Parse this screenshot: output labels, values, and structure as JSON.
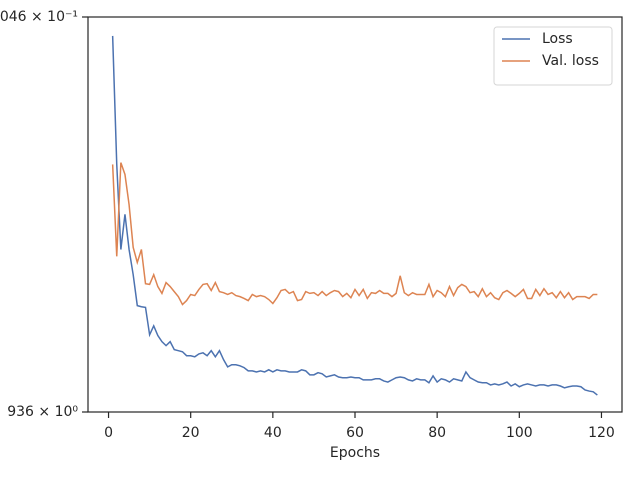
{
  "chart_data": {
    "type": "line",
    "xlabel": "Epochs",
    "log_y": true,
    "legend": "upper right",
    "xlim": [
      -5,
      125
    ],
    "xticks": [
      0,
      20,
      40,
      60,
      80,
      100,
      120
    ],
    "ylim": [
      0.9936,
      1.0046
    ],
    "yticks": [
      {
        "value": 0.9936,
        "label": "936 × 10⁰"
      },
      {
        "value": 1.0046,
        "label": "046 × 10⁻¹"
      }
    ],
    "x": [
      1,
      2,
      3,
      4,
      5,
      6,
      7,
      8,
      9,
      10,
      11,
      12,
      13,
      14,
      15,
      16,
      17,
      18,
      19,
      20,
      21,
      22,
      23,
      24,
      25,
      26,
      27,
      28,
      29,
      30,
      31,
      32,
      33,
      34,
      35,
      36,
      37,
      38,
      39,
      40,
      41,
      42,
      43,
      44,
      45,
      46,
      47,
      48,
      49,
      50,
      51,
      52,
      53,
      54,
      55,
      56,
      57,
      58,
      59,
      60,
      61,
      62,
      63,
      64,
      65,
      66,
      67,
      68,
      69,
      70,
      71,
      72,
      73,
      74,
      75,
      76,
      77,
      78,
      79,
      80,
      81,
      82,
      83,
      84,
      85,
      86,
      87,
      88,
      89,
      90,
      91,
      92,
      93,
      94,
      95,
      96,
      97,
      98,
      99,
      100,
      101,
      102,
      103,
      104,
      105,
      106,
      107,
      108,
      109,
      110,
      111,
      112,
      113,
      114,
      115,
      116,
      117,
      118,
      119
    ],
    "series": [
      {
        "name": "Loss",
        "color": "#4c72b0",
        "values": [
          1.00407,
          1.00048,
          0.99811,
          0.99909,
          0.99811,
          0.99741,
          0.99655,
          0.99652,
          0.9965,
          0.99574,
          0.99599,
          0.99572,
          0.99555,
          0.99544,
          0.99555,
          0.99533,
          0.9953,
          0.99527,
          0.99516,
          0.99516,
          0.99513,
          0.99521,
          0.99524,
          0.99516,
          0.9953,
          0.99513,
          0.9953,
          0.99505,
          0.99485,
          0.99491,
          0.99491,
          0.99488,
          0.99483,
          0.99474,
          0.99474,
          0.99471,
          0.99474,
          0.99471,
          0.99477,
          0.99471,
          0.99477,
          0.99474,
          0.99474,
          0.99471,
          0.99471,
          0.99471,
          0.99477,
          0.99474,
          0.99463,
          0.99463,
          0.99469,
          0.99466,
          0.99457,
          0.9946,
          0.99463,
          0.99457,
          0.99455,
          0.99455,
          0.99457,
          0.99455,
          0.99455,
          0.99449,
          0.99449,
          0.99449,
          0.99452,
          0.99452,
          0.99446,
          0.99443,
          0.99449,
          0.99455,
          0.99457,
          0.99455,
          0.99449,
          0.99446,
          0.99452,
          0.99449,
          0.99449,
          0.99441,
          0.9946,
          0.99443,
          0.99452,
          0.99449,
          0.99443,
          0.99452,
          0.99449,
          0.99446,
          0.99471,
          0.99455,
          0.99449,
          0.99443,
          0.99441,
          0.99441,
          0.99435,
          0.99438,
          0.99435,
          0.99438,
          0.99443,
          0.99432,
          0.99438,
          0.9943,
          0.99435,
          0.99438,
          0.99435,
          0.99432,
          0.99435,
          0.99435,
          0.99432,
          0.99435,
          0.99435,
          0.99432,
          0.99427,
          0.9943,
          0.99432,
          0.99432,
          0.9943,
          0.99421,
          0.99418,
          0.99416,
          0.99407
        ]
      },
      {
        "name": "Val. loss",
        "color": "#dd8452",
        "values": [
          1.00048,
          0.99792,
          1.00053,
          1.0002,
          0.99936,
          0.99817,
          0.99775,
          0.99811,
          0.99716,
          0.99714,
          0.99741,
          0.99708,
          0.99689,
          0.99719,
          0.99708,
          0.99694,
          0.9968,
          0.99658,
          0.99669,
          0.99686,
          0.99683,
          0.997,
          0.99714,
          0.99716,
          0.99697,
          0.99719,
          0.99694,
          0.99691,
          0.99686,
          0.99691,
          0.99683,
          0.9968,
          0.99675,
          0.99669,
          0.99686,
          0.9968,
          0.99683,
          0.9968,
          0.99672,
          0.99661,
          0.99677,
          0.99697,
          0.997,
          0.99689,
          0.99694,
          0.99669,
          0.99672,
          0.99694,
          0.99689,
          0.99691,
          0.99683,
          0.99694,
          0.99683,
          0.99691,
          0.99697,
          0.99694,
          0.9968,
          0.99689,
          0.99677,
          0.997,
          0.99683,
          0.997,
          0.99675,
          0.99691,
          0.99689,
          0.99697,
          0.99689,
          0.99689,
          0.9968,
          0.99689,
          0.99738,
          0.99691,
          0.99683,
          0.99691,
          0.99686,
          0.99686,
          0.99686,
          0.99714,
          0.9968,
          0.99697,
          0.99691,
          0.9968,
          0.99708,
          0.99683,
          0.99705,
          0.99714,
          0.99708,
          0.99691,
          0.99694,
          0.9968,
          0.99702,
          0.9968,
          0.99691,
          0.99677,
          0.99672,
          0.99691,
          0.99697,
          0.99689,
          0.9968,
          0.99689,
          0.997,
          0.99675,
          0.99675,
          0.997,
          0.99683,
          0.99702,
          0.99686,
          0.99691,
          0.99677,
          0.99694,
          0.99677,
          0.99691,
          0.99672,
          0.9968,
          0.9968,
          0.9968,
          0.99675,
          0.99686,
          0.99686
        ]
      }
    ]
  }
}
